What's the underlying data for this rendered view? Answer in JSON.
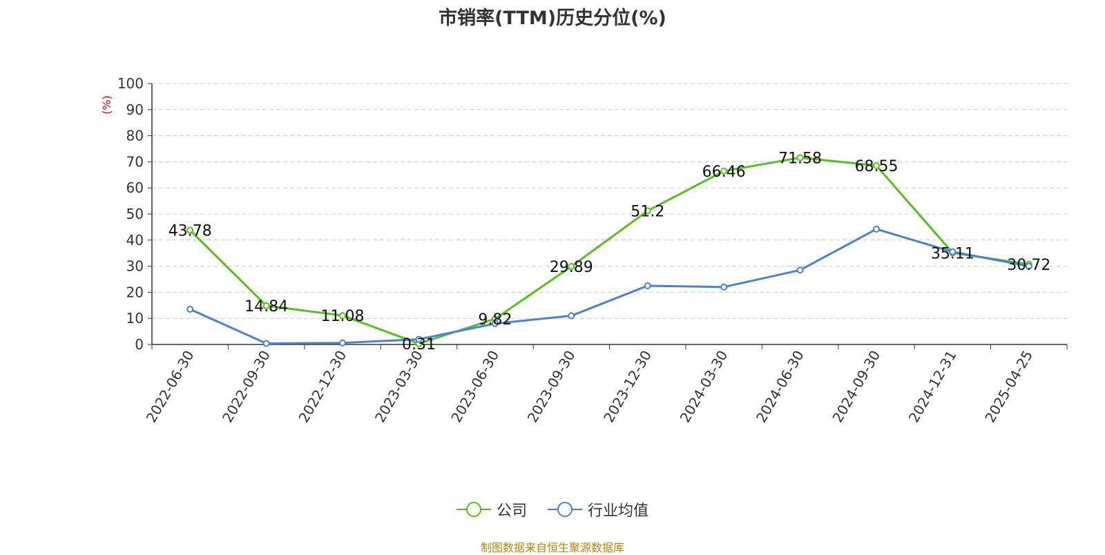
{
  "chart_data": {
    "type": "line",
    "title": "市销率(TTM)历史分位(%)",
    "ylabel": "(%)",
    "xlabel": "",
    "ylim": [
      0,
      100
    ],
    "yticks": [
      0,
      10,
      20,
      30,
      40,
      50,
      60,
      70,
      80,
      90,
      100
    ],
    "categories": [
      "2022-06-30",
      "2022-09-30",
      "2022-12-30",
      "2023-03-30",
      "2023-06-30",
      "2023-09-30",
      "2023-12-30",
      "2024-03-30",
      "2024-06-30",
      "2024-09-30",
      "2024-12-31",
      "2025-04-25"
    ],
    "series": [
      {
        "name": "公司",
        "color": "#52c41a",
        "values": [
          43.78,
          14.84,
          11.08,
          0.31,
          9.82,
          29.89,
          51.2,
          66.46,
          71.58,
          68.55,
          35.11,
          30.72
        ],
        "labels": [
          "43.78",
          "14.84",
          "11.08",
          "0.31",
          "9.82",
          "29.89",
          "51.2",
          "66.46",
          "71.58",
          "68.55",
          "35.11",
          "30.72"
        ]
      },
      {
        "name": "行业均值",
        "color": "#4a7fdb",
        "values": [
          13.5,
          0.4,
          0.6,
          2.0,
          8.0,
          11.0,
          22.5,
          22.0,
          28.5,
          44.2,
          35.5,
          30.0
        ]
      }
    ],
    "grid": true,
    "legend": "bottom-center"
  },
  "source": "制图数据来自恒生聚源数据库"
}
